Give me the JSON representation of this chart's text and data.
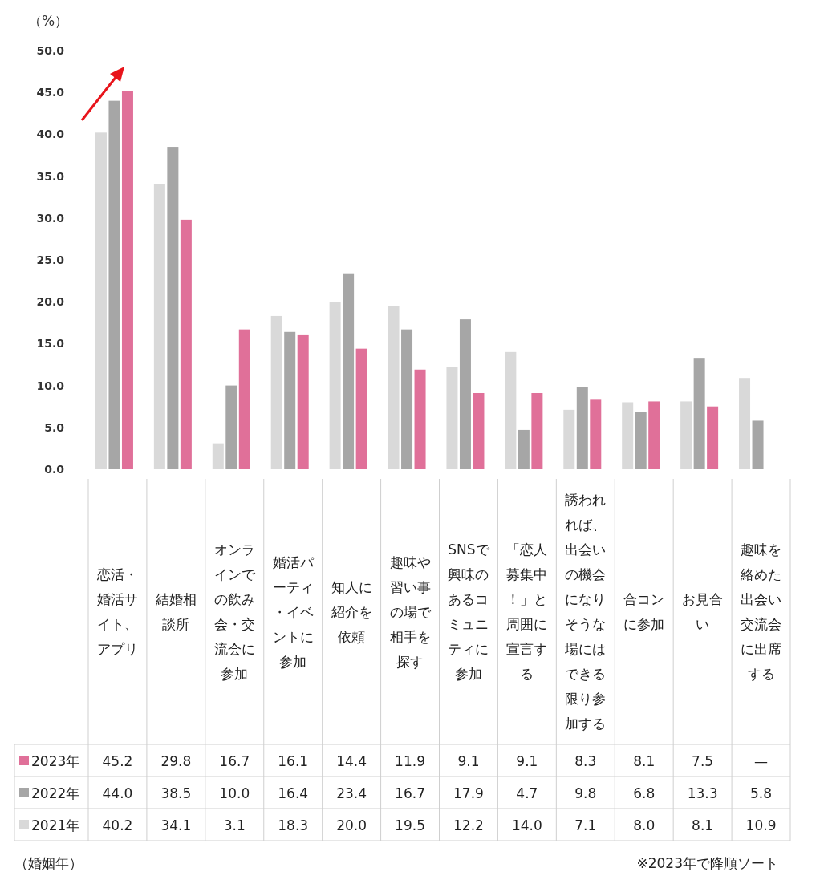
{
  "chart_data": {
    "type": "bar",
    "ylabel": "（%）",
    "ylim": [
      0,
      50
    ],
    "yticks": [
      {
        "value": 0,
        "label": "0.0"
      },
      {
        "value": 5,
        "label": "5.0"
      },
      {
        "value": 10,
        "label": "10.0"
      },
      {
        "value": 15,
        "label": "15.0"
      },
      {
        "value": 20,
        "label": "20.0"
      },
      {
        "value": 25,
        "label": "25.0"
      },
      {
        "value": 30,
        "label": "30.0"
      },
      {
        "value": 35,
        "label": "35.0"
      },
      {
        "value": 40,
        "label": "40.0"
      },
      {
        "value": 45,
        "label": "45.0"
      },
      {
        "value": 50,
        "label": "50.0"
      }
    ],
    "categories": [
      "恋活・婚活サイト、アプリ",
      "結婚相談所",
      "オンラインでの飲み会・交流会に参加",
      "婚活パーティ・イベントに参加",
      "知人に紹介を依頼",
      "趣味や習い事の場で相手を探す",
      "SNSで興味のあるコミュニティに参加",
      "「恋人募集中！」と周囲に宣言する",
      "誘われれば、出会いの機会になりそうな場にはできる限り参加する",
      "合コンに参加",
      "お見合い",
      "趣味を絡めた出会い交流会に出席する"
    ],
    "series": [
      {
        "name": "2021年",
        "color": "#d9d9d9",
        "values": [
          40.2,
          34.1,
          3.1,
          18.3,
          20.0,
          19.5,
          12.2,
          14.0,
          7.1,
          8.0,
          8.1,
          10.9
        ],
        "value_labels": [
          "40.2",
          "34.1",
          "3.1",
          "18.3",
          "20.0",
          "19.5",
          "12.2",
          "14.0",
          "7.1",
          "8.0",
          "8.1",
          "10.9"
        ]
      },
      {
        "name": "2022年",
        "color": "#a6a6a6",
        "values": [
          44.0,
          38.5,
          10.0,
          16.4,
          23.4,
          16.7,
          17.9,
          4.7,
          9.8,
          6.8,
          13.3,
          5.8
        ],
        "value_labels": [
          "44.0",
          "38.5",
          "10.0",
          "16.4",
          "23.4",
          "16.7",
          "17.9",
          "4.7",
          "9.8",
          "6.8",
          "13.3",
          "5.8"
        ]
      },
      {
        "name": "2023年",
        "color": "#e07099",
        "values": [
          45.2,
          29.8,
          16.7,
          16.1,
          14.4,
          11.9,
          9.1,
          9.1,
          8.3,
          8.1,
          7.5,
          null
        ],
        "value_labels": [
          "45.2",
          "29.8",
          "16.7",
          "16.1",
          "14.4",
          "11.9",
          "9.1",
          "9.1",
          "8.3",
          "8.1",
          "7.5",
          "—"
        ]
      }
    ],
    "legend": "bottom",
    "annotations": [
      "（婚姻年）",
      "※2023年で降順ソート"
    ]
  }
}
